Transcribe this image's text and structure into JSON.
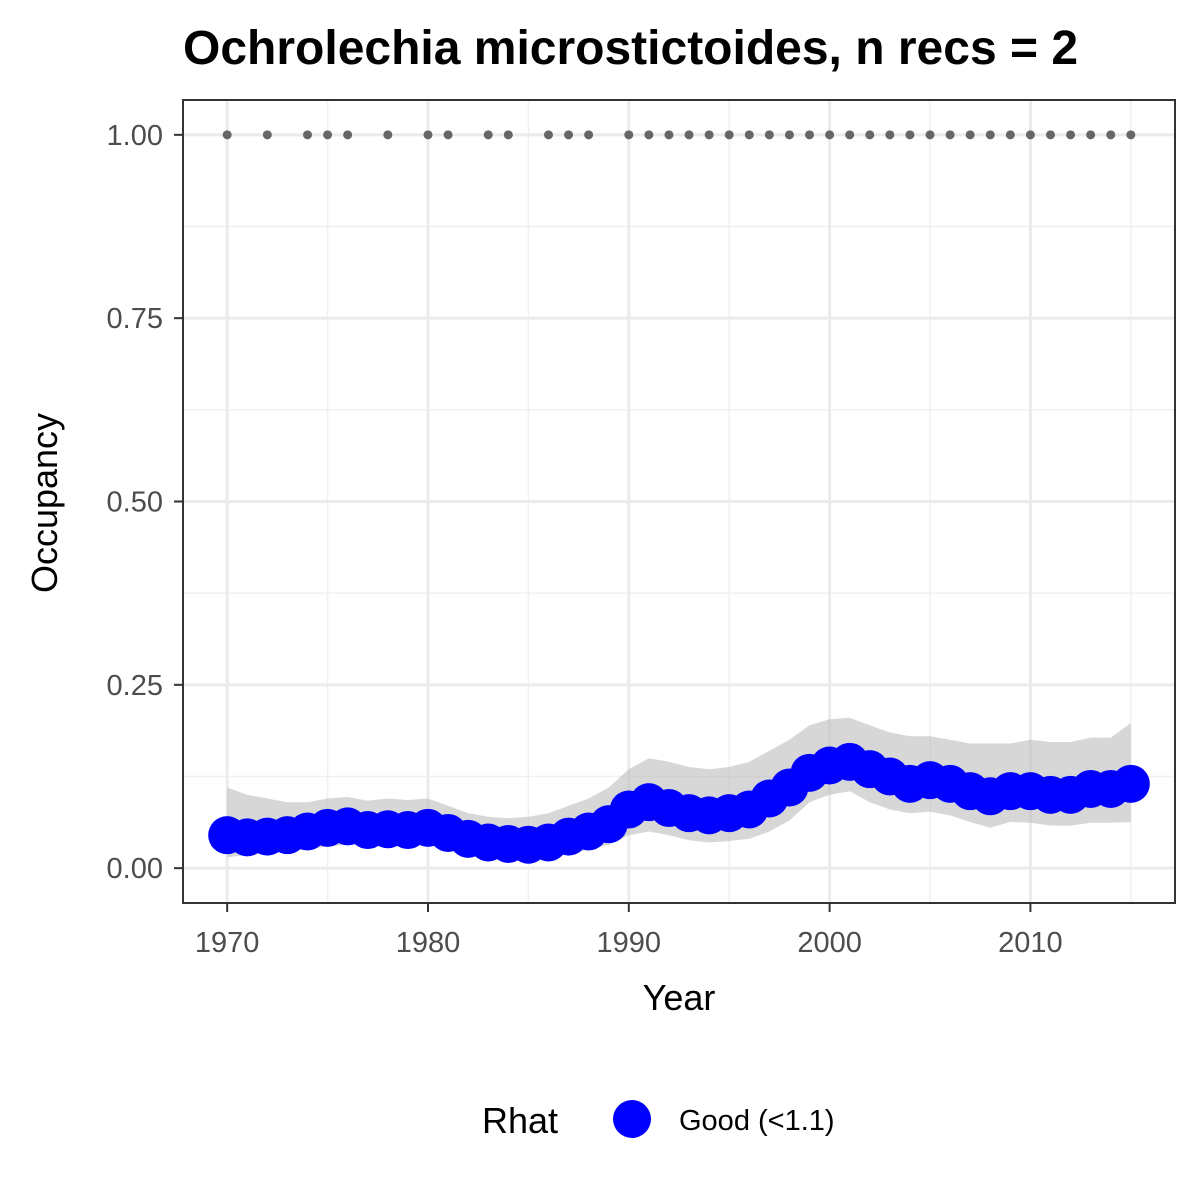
{
  "chart_data": {
    "type": "line",
    "title": "Ochrolechia microstictoides, n recs = 2",
    "xlabel": "Year",
    "ylabel": "Occupancy",
    "xlim": [
      1967.8,
      2017.2
    ],
    "ylim": [
      -0.0475,
      1.0475
    ],
    "xticks": [
      1970,
      1980,
      1990,
      2000,
      2010
    ],
    "xtick_labels": [
      "1970",
      "1980",
      "1990",
      "2000",
      "2010"
    ],
    "yticks": [
      0.0,
      0.25,
      0.5,
      0.75,
      1.0
    ],
    "ytick_labels": [
      "0.00",
      "0.25",
      "0.50",
      "0.75",
      "1.00"
    ],
    "grid": true,
    "x": [
      1970,
      1971,
      1972,
      1973,
      1974,
      1975,
      1976,
      1977,
      1978,
      1979,
      1980,
      1981,
      1982,
      1983,
      1984,
      1985,
      1986,
      1987,
      1988,
      1989,
      1990,
      1991,
      1992,
      1993,
      1994,
      1995,
      1996,
      1997,
      1998,
      1999,
      2000,
      2001,
      2002,
      2003,
      2004,
      2005,
      2006,
      2007,
      2008,
      2009,
      2010,
      2011,
      2012,
      2013,
      2014,
      2015
    ],
    "series": [
      {
        "type": "line",
        "color": "#0000ff",
        "values": [
          0.045,
          0.042,
          0.043,
          0.045,
          0.05,
          0.055,
          0.057,
          0.052,
          0.053,
          0.052,
          0.055,
          0.048,
          0.04,
          0.035,
          0.033,
          0.032,
          0.035,
          0.043,
          0.05,
          0.06,
          0.08,
          0.09,
          0.082,
          0.075,
          0.072,
          0.075,
          0.08,
          0.095,
          0.11,
          0.13,
          0.14,
          0.145,
          0.135,
          0.125,
          0.115,
          0.12,
          0.115,
          0.105,
          0.098,
          0.105,
          0.105,
          0.1,
          0.1,
          0.108,
          0.108,
          0.115
        ]
      },
      {
        "type": "band",
        "color": "#bdbdbd",
        "lower": [
          0.015,
          0.018,
          0.02,
          0.023,
          0.025,
          0.03,
          0.032,
          0.03,
          0.03,
          0.03,
          0.032,
          0.026,
          0.02,
          0.015,
          0.013,
          0.012,
          0.014,
          0.02,
          0.025,
          0.032,
          0.045,
          0.05,
          0.045,
          0.038,
          0.035,
          0.037,
          0.04,
          0.05,
          0.065,
          0.09,
          0.1,
          0.105,
          0.09,
          0.08,
          0.075,
          0.077,
          0.072,
          0.063,
          0.055,
          0.063,
          0.062,
          0.058,
          0.058,
          0.062,
          0.062,
          0.063
        ],
        "upper": [
          0.11,
          0.1,
          0.095,
          0.09,
          0.09,
          0.095,
          0.097,
          0.092,
          0.095,
          0.093,
          0.095,
          0.085,
          0.075,
          0.07,
          0.068,
          0.07,
          0.075,
          0.085,
          0.095,
          0.11,
          0.135,
          0.15,
          0.145,
          0.138,
          0.135,
          0.138,
          0.145,
          0.16,
          0.175,
          0.195,
          0.203,
          0.205,
          0.195,
          0.185,
          0.18,
          0.18,
          0.175,
          0.17,
          0.17,
          0.17,
          0.175,
          0.172,
          0.172,
          0.178,
          0.178,
          0.198
        ]
      },
      {
        "type": "scatter",
        "color": "#666666",
        "x": [
          1970,
          1972,
          1974,
          1975,
          1976,
          1978,
          1980,
          1981,
          1983,
          1984,
          1986,
          1987,
          1988,
          1990,
          1991,
          1992,
          1993,
          1994,
          1995,
          1996,
          1997,
          1998,
          1999,
          2000,
          2001,
          2002,
          2003,
          2004,
          2005,
          2006,
          2007,
          2008,
          2009,
          2010,
          2011,
          2012,
          2013,
          2014,
          2015
        ],
        "values": [
          1,
          1,
          1,
          1,
          1,
          1,
          1,
          1,
          1,
          1,
          1,
          1,
          1,
          1,
          1,
          1,
          1,
          1,
          1,
          1,
          1,
          1,
          1,
          1,
          1,
          1,
          1,
          1,
          1,
          1,
          1,
          1,
          1,
          1,
          1,
          1,
          1,
          1,
          1
        ]
      }
    ],
    "legend": {
      "position": "bottom",
      "title": "Rhat",
      "entries": [
        {
          "label": "Good (<1.1)",
          "color": "#0000ff"
        }
      ]
    }
  }
}
